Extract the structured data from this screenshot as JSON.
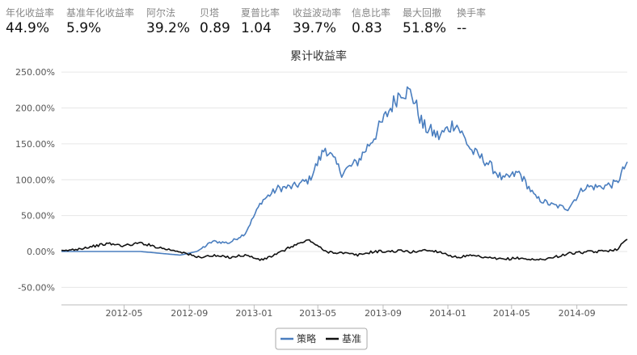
{
  "stats": [
    {
      "label": "年化收益率",
      "value": "44.9%"
    },
    {
      "label": "基准年化收益率",
      "value": "5.9%"
    },
    {
      "label": "阿尔法",
      "value": "39.2%"
    },
    {
      "label": "贝塔",
      "value": "0.89"
    },
    {
      "label": "夏普比率",
      "value": "1.04"
    },
    {
      "label": "收益波动率",
      "value": "39.7%"
    },
    {
      "label": "信息比率",
      "value": "0.83"
    },
    {
      "label": "最大回撤",
      "value": "51.8%"
    },
    {
      "label": "换手率",
      "value": "--"
    }
  ],
  "chart_data": {
    "type": "line",
    "title": "累计收益率",
    "xlabel": "",
    "ylabel": "",
    "x_ticks": [
      "2012-05",
      "2012-09",
      "2013-01",
      "2013-05",
      "2013-09",
      "2014-01",
      "2014-05",
      "2014-09"
    ],
    "y_ticks": [
      "250.00%",
      "200.00%",
      "150.00%",
      "100.00%",
      "50.00%",
      "0.00%",
      "-50.00%"
    ],
    "xlim": [
      "2012-01-04",
      "2014-12-05"
    ],
    "ylim": [
      -60,
      260
    ],
    "grid": "horizontal",
    "legend_position": "bottom-center",
    "x": [
      "2012-01-04",
      "2012-02-15",
      "2012-04-01",
      "2012-05-01",
      "2012-06-01",
      "2012-07-15",
      "2012-08-15",
      "2012-09-15",
      "2012-10-15",
      "2012-11-15",
      "2012-12-15",
      "2013-01-15",
      "2013-02-15",
      "2013-03-15",
      "2013-04-15",
      "2013-05-15",
      "2013-06-15",
      "2013-07-15",
      "2013-08-15",
      "2013-09-15",
      "2013-10-05",
      "2013-10-25",
      "2013-11-15",
      "2013-12-15",
      "2014-01-15",
      "2014-02-15",
      "2014-03-15",
      "2014-04-15",
      "2014-05-15",
      "2014-06-15",
      "2014-07-15",
      "2014-08-15",
      "2014-09-15",
      "2014-10-15",
      "2014-11-15",
      "2014-12-05"
    ],
    "series": [
      {
        "name": "策略",
        "color": "#4a7ebf",
        "values": [
          0,
          0,
          0,
          0,
          0,
          -3,
          -5,
          0,
          14,
          12,
          25,
          70,
          88,
          90,
          100,
          145,
          110,
          125,
          160,
          200,
          225,
          220,
          175,
          160,
          180,
          140,
          125,
          100,
          110,
          75,
          65,
          60,
          90,
          90,
          95,
          125
        ]
      },
      {
        "name": "基准",
        "color": "#111111",
        "values": [
          0,
          5,
          11,
          8,
          12,
          4,
          0,
          -8,
          -6,
          -8,
          -5,
          -12,
          -3,
          8,
          16,
          0,
          -2,
          -5,
          0,
          0,
          1,
          -1,
          2,
          0,
          -8,
          -6,
          -9,
          -11,
          -9,
          -12,
          -9,
          -3,
          -1,
          0,
          3,
          17
        ]
      }
    ]
  }
}
